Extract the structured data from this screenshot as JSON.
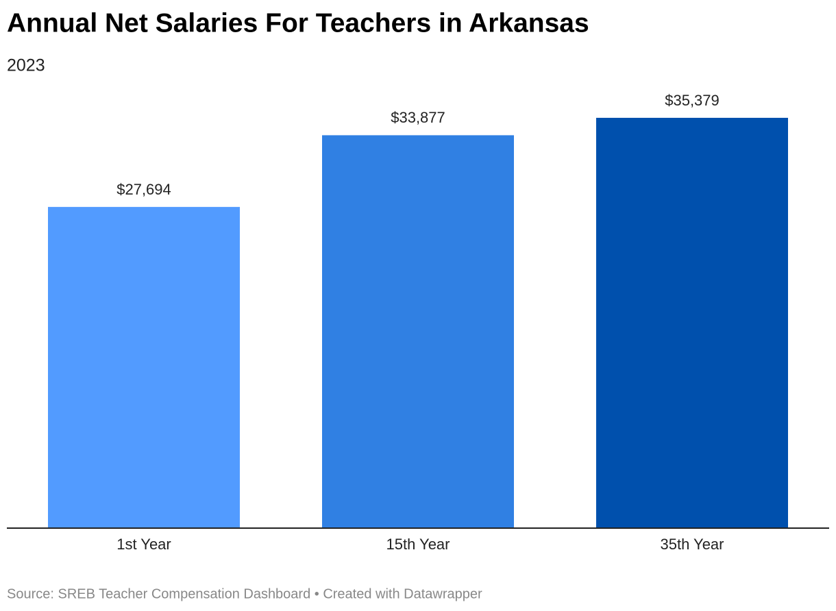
{
  "chart_data": {
    "type": "bar",
    "title": "Annual Net Salaries For Teachers in Arkansas",
    "subtitle": "2023",
    "categories": [
      "1st Year",
      "15th Year",
      "35th Year"
    ],
    "values": [
      27694,
      33877,
      35379
    ],
    "value_labels": [
      "$27,694",
      "$33,877",
      "$35,379"
    ],
    "colors": [
      "#529bff",
      "#3080e3",
      "#0050ad"
    ],
    "source": "Source: SREB Teacher Compensation Dashboard • Created with Datawrapper"
  }
}
